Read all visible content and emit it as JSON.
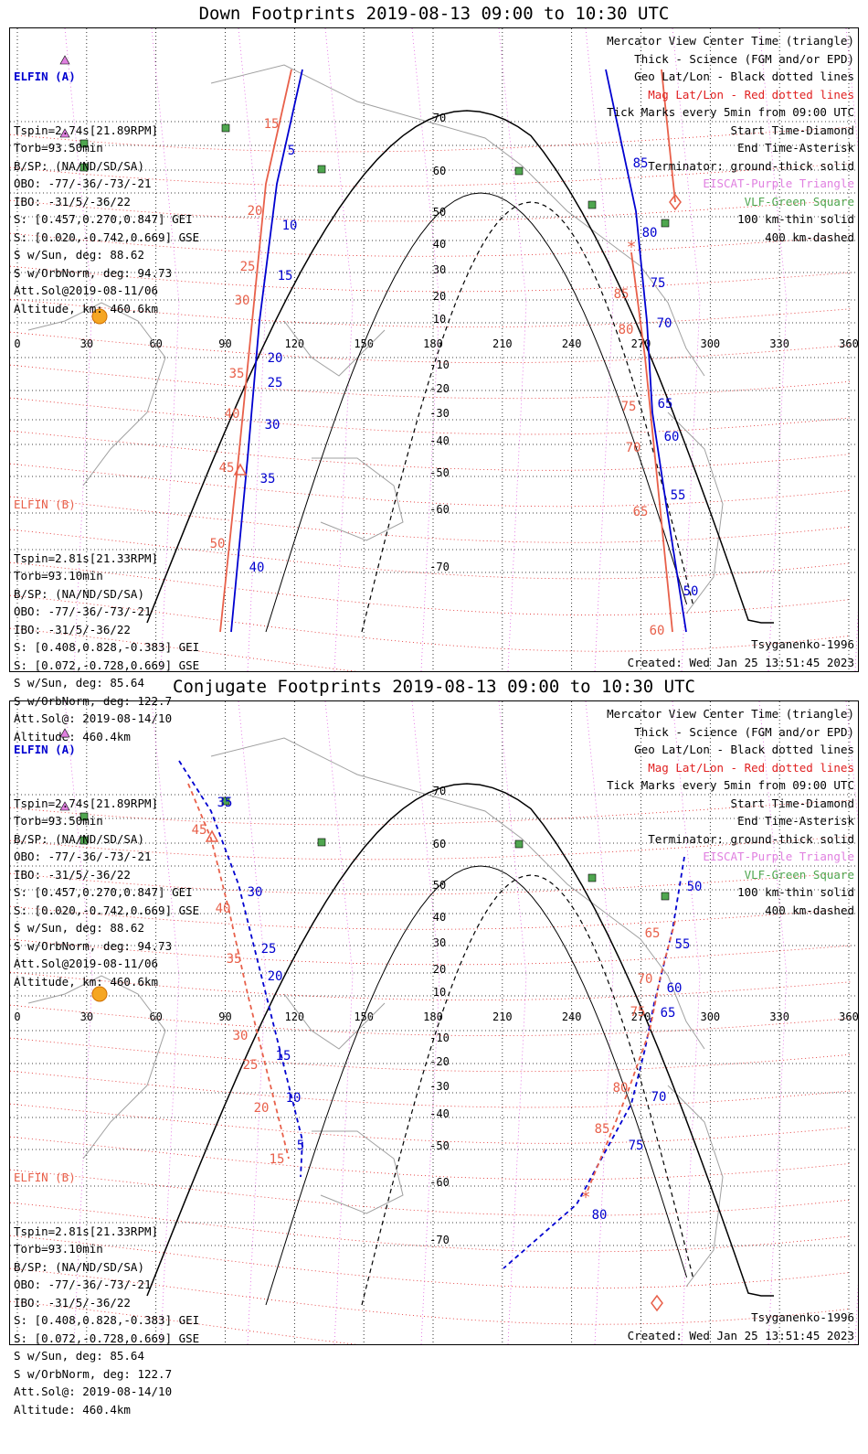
{
  "panels": [
    {
      "title": "Down Footprints 2019-08-13 09:00 to 10:30 UTC",
      "elfin_a": {
        "header": "ELFIN (A)",
        "lines": [
          "Tspin=2.74s[21.89RPM]",
          "Torb=93.50min",
          "B/SP: (NA/ND/SD/SA)",
          "OBO: -77/-36/-73/-21",
          "IBO: -31/5/-36/22",
          "S: [0.457,0.270,0.847] GEI",
          "S: [0.020,-0.742,0.669] GSE",
          "S w/Sun, deg: 88.62",
          "S w/OrbNorm, deg: 94.73",
          "Att.Sol@2019-08-11/06",
          "Altitude, km: 460.6km"
        ]
      },
      "elfin_b": {
        "header": "ELFIN (B)",
        "lines": [
          "Tspin=2.81s[21.33RPM]",
          "Torb=93.10min",
          "B/SP: (NA/ND/SD/SA)",
          "OBO: -77/-36/-73/-21",
          "IBO: -31/5/-36/22",
          "S: [0.408,0.828,-0.383] GEI",
          "S: [0.072,-0.728,0.669] GSE",
          "S w/Sun, deg: 85.64",
          "S w/OrbNorm, deg: 122.7",
          "Att.Sol@: 2019-08-14/10",
          "Altitude: 460.4km"
        ]
      },
      "footer_model": "Tsyganenko-1996",
      "footer_created": "Created: Wed Jan 25 13:51:45 2023"
    },
    {
      "title": "Conjugate Footprints 2019-08-13 09:00 to 10:30 UTC",
      "elfin_a": {
        "header": "ELFIN (A)",
        "lines": [
          "Tspin=2.74s[21.89RPM]",
          "Torb=93.50min",
          "B/SP: (NA/ND/SD/SA)",
          "OBO: -77/-36/-73/-21",
          "IBO: -31/5/-36/22",
          "S: [0.457,0.270,0.847] GEI",
          "S: [0.020,-0.742,0.669] GSE",
          "S w/Sun, deg: 88.62",
          "S w/OrbNorm, deg: 94.73",
          "Att.Sol@2019-08-11/06",
          "Altitude, km: 460.6km"
        ]
      },
      "elfin_b": {
        "header": "ELFIN (B)",
        "lines": [
          "Tspin=2.81s[21.33RPM]",
          "Torb=93.10min",
          "B/SP: (NA/ND/SD/SA)",
          "OBO: -77/-36/-73/-21",
          "IBO: -31/5/-36/22",
          "S: [0.408,0.828,-0.383] GEI",
          "S: [0.072,-0.728,0.669] GSE",
          "S w/Sun, deg: 85.64",
          "S w/OrbNorm, deg: 122.7",
          "Att.Sol@: 2019-08-14/10",
          "Altitude: 460.4km"
        ]
      },
      "footer_model": "Tsyganenko-1996",
      "footer_created": "Created: Wed Jan 25 13:51:45 2023"
    }
  ],
  "legend": [
    {
      "text": "Mercator View Center Time (triangle)",
      "color": "#000000"
    },
    {
      "text": "Thick - Science (FGM and/or EPD)",
      "color": "#000000"
    },
    {
      "text": "Geo Lat/Lon - Black dotted lines",
      "color": "#000000"
    },
    {
      "text": "Mag Lat/Lon - Red dotted lines",
      "color": "#e02020"
    },
    {
      "text": "Tick Marks every 5min from 09:00 UTC",
      "color": "#000000"
    },
    {
      "text": "Start Time-Diamond",
      "color": "#000000"
    },
    {
      "text": "End Time-Asterisk",
      "color": "#000000"
    },
    {
      "text": "Terminator: ground-thick solid",
      "color": "#000000"
    },
    {
      "text": "EISCAT-Purple Triangle",
      "color": "#e080e0"
    },
    {
      "text": "VLF-Green Square",
      "color": "#4fa64f"
    },
    {
      "text": "100 km-thin solid",
      "color": "#000000"
    },
    {
      "text": "400 km-dashed",
      "color": "#000000"
    }
  ],
  "map": {
    "lon_ticks": [
      "0",
      "30",
      "60",
      "90",
      "120",
      "150",
      "180",
      "210",
      "240",
      "270",
      "300",
      "330",
      "360"
    ],
    "lat_labels": [
      "70",
      "60",
      "50",
      "40",
      "30",
      "20",
      "10",
      "-10",
      "-20",
      "-30",
      "-40",
      "-50",
      "-60",
      "-70"
    ]
  },
  "colors": {
    "elfin_a": "#0000d0",
    "elfin_b": "#e8604a",
    "geo_grid": "#000000",
    "mag_grid": "#e02020",
    "eiscat": "#e080e0",
    "vlf": "#4fa64f"
  },
  "down_tracks": {
    "a_ticks": [
      "5",
      "10",
      "15",
      "20",
      "25",
      "30",
      "35",
      "40",
      "85",
      "80",
      "75",
      "70",
      "65",
      "60",
      "55",
      "50"
    ],
    "b_ticks": [
      "15",
      "20",
      "25",
      "30",
      "35",
      "40",
      "45",
      "50",
      "85",
      "80",
      "75",
      "70",
      "65",
      "60"
    ]
  },
  "conj_tracks": {
    "a_ticks": [
      "35",
      "30",
      "25",
      "20",
      "15",
      "10",
      "5",
      "50",
      "55",
      "60",
      "65",
      "70",
      "75",
      "80"
    ],
    "b_ticks": [
      "45",
      "40",
      "35",
      "30",
      "25",
      "20",
      "15",
      "65",
      "70",
      "75",
      "80",
      "85"
    ]
  }
}
